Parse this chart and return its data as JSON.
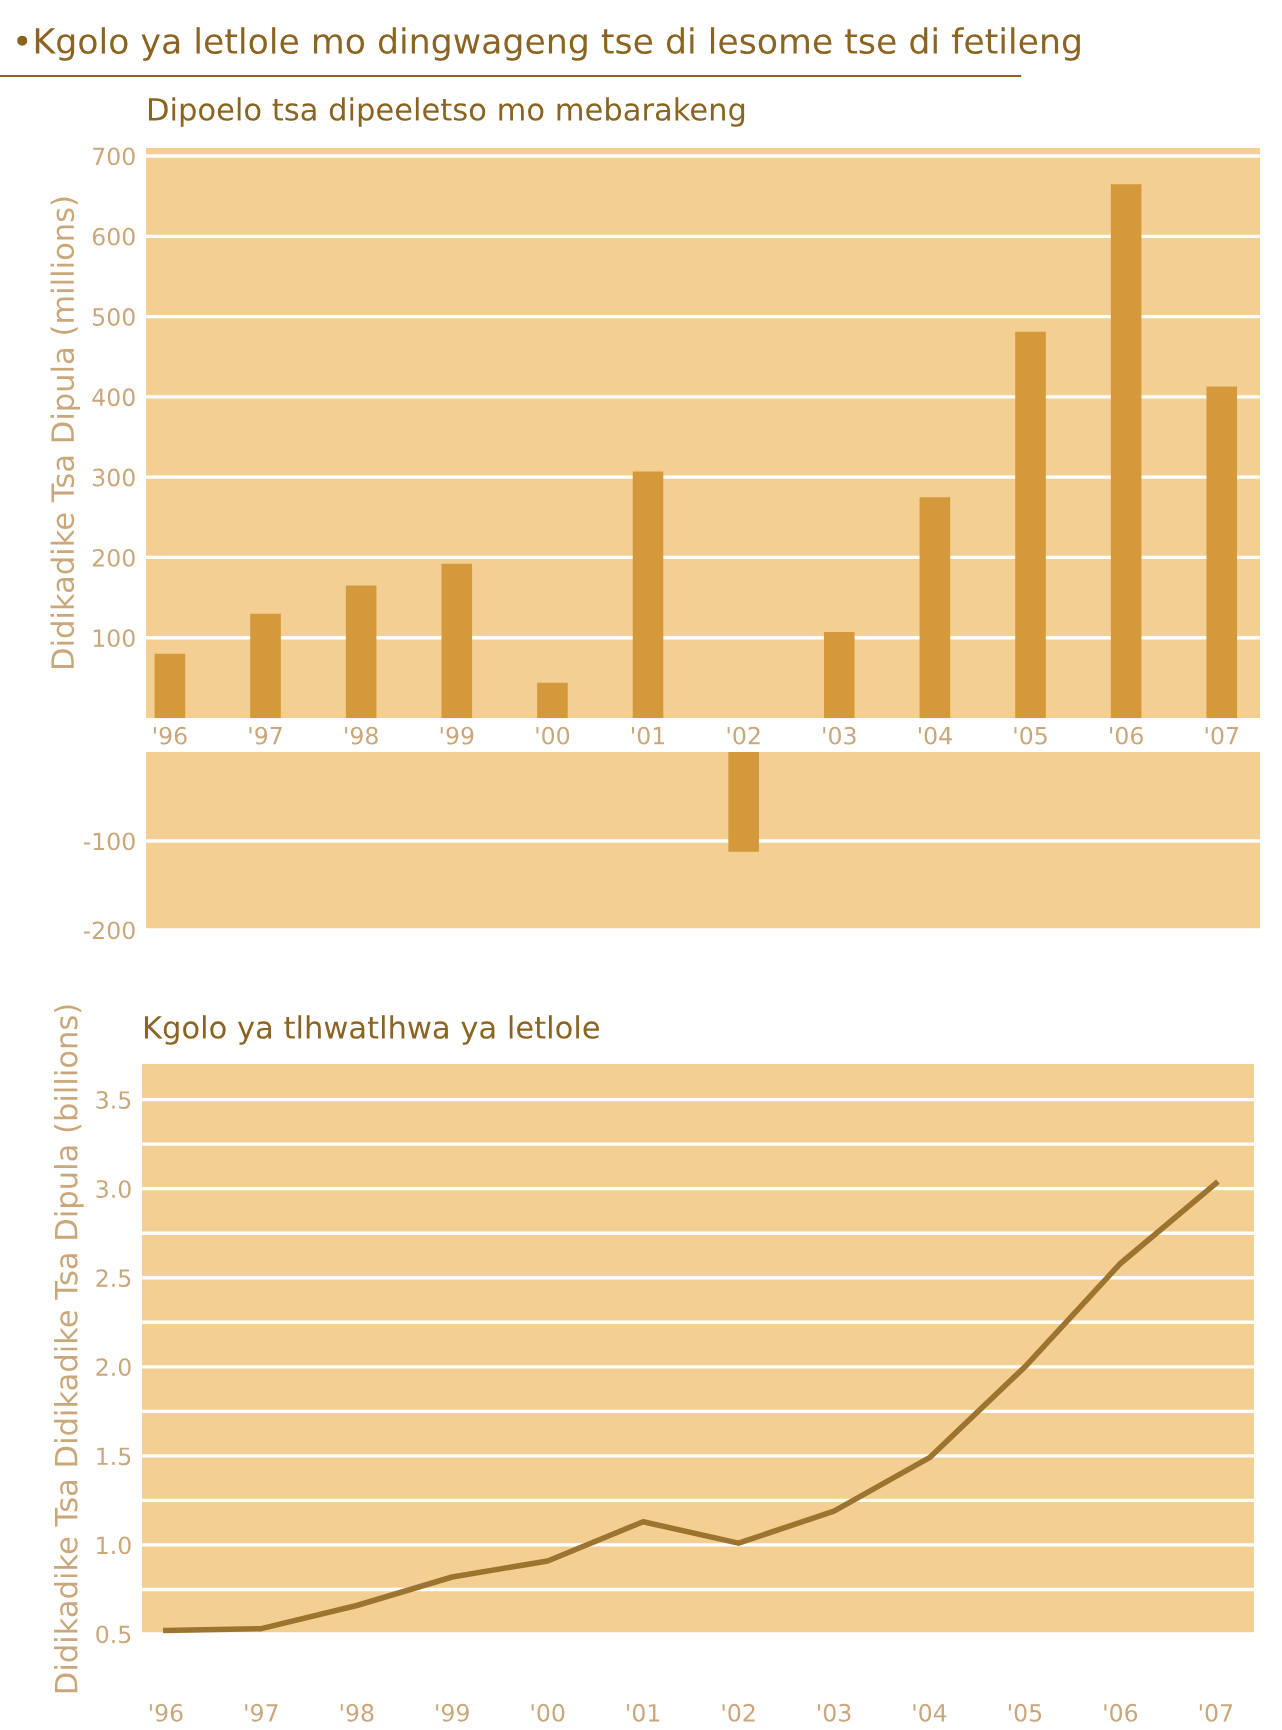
{
  "chart_data": [
    {
      "type": "bar",
      "title": "•Kgolo ya letlole mo dingwageng tse di lesome tse di fetileng",
      "subtitle": "Dipoelo tsa dipeeletso mo mebarakeng",
      "ylabel": "Didikadike Tsa Dipula (millions)",
      "categories": [
        "'96",
        "'97",
        "'98",
        "'99",
        "'00",
        "'01",
        "'02",
        "'03",
        "'04",
        "'05",
        "'06",
        "'07"
      ],
      "values": [
        80,
        130,
        165,
        192,
        44,
        307,
        null,
        107,
        275,
        481,
        665,
        413
      ],
      "color": "#d4993a",
      "ylim": [
        0,
        710
      ],
      "yticks": [
        100,
        200,
        300,
        400,
        500,
        600,
        700
      ],
      "grid": "y"
    },
    {
      "type": "bar",
      "categories": [
        null,
        null,
        null,
        null,
        null,
        null,
        null,
        null,
        null,
        null,
        null,
        null
      ],
      "values": [
        null,
        null,
        null,
        null,
        null,
        null,
        -112,
        null,
        null,
        null,
        null,
        null
      ],
      "color": "#d4993a",
      "ylim": [
        -200,
        0
      ],
      "yticks": [
        -100,
        -200
      ],
      "grid": "y",
      "tick_labels": "y"
    },
    {
      "type": "line",
      "title": "Kgolo ya tlhwatlhwa ya letlole",
      "ylabel": "Didikadike Tsa Didikadike Tsa Dipula (billions)",
      "categories": [
        "'96",
        "'97",
        "'98",
        "'99",
        "'00",
        "'01",
        "'02",
        "'03",
        "'04",
        "'05",
        "'06",
        "'07"
      ],
      "values": [
        0.52,
        0.53,
        0.66,
        0.82,
        0.91,
        1.13,
        1.01,
        1.19,
        1.49,
        2.0,
        2.58,
        3.03
      ],
      "color": "#9c7430",
      "ylim": [
        0.5,
        3.7
      ],
      "yticks": [
        {
          "value": 0.5,
          "label": "0.5"
        },
        {
          "value": 0.75,
          "label": null
        },
        {
          "value": 1.0,
          "label": "1.0"
        },
        {
          "value": 1.25,
          "label": null
        },
        {
          "value": 1.5,
          "label": "1.5"
        },
        {
          "value": 1.75,
          "label": null
        },
        {
          "value": 2.0,
          "label": "2.0"
        },
        {
          "value": 2.25,
          "label": null
        },
        {
          "value": 2.5,
          "label": "2.5"
        },
        {
          "value": 2.75,
          "label": null
        },
        {
          "value": 3.0,
          "label": "3.0"
        },
        {
          "value": 3.25,
          "label": null
        },
        {
          "value": 3.5,
          "label": "3.5"
        }
      ],
      "grid": "y"
    }
  ]
}
